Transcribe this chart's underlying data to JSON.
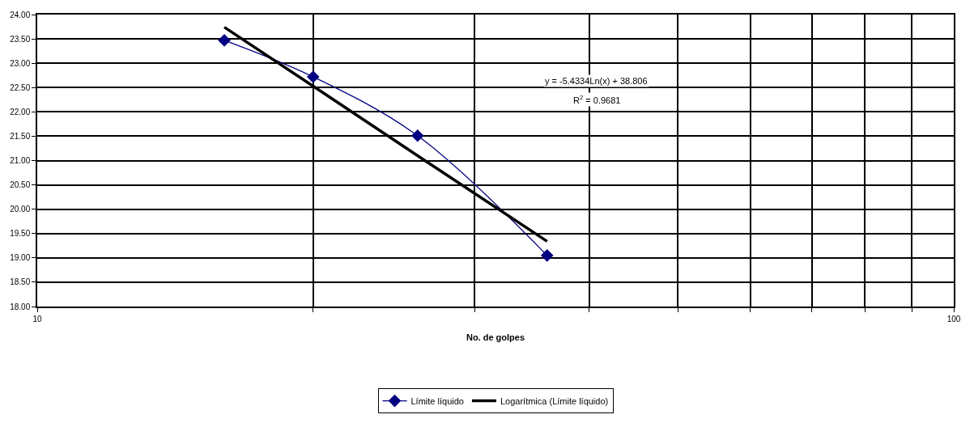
{
  "chart_data": {
    "type": "line",
    "xlabel": "No. de golpes",
    "log": "x",
    "grid": true,
    "legend": "bottom",
    "xlim": [
      10,
      100
    ],
    "xticks": [
      10,
      {
        "value": 20,
        "label": null
      },
      {
        "value": 30,
        "label": null
      },
      {
        "value": 40,
        "label": null
      },
      {
        "value": 50,
        "label": null
      },
      {
        "value": 60,
        "label": null
      },
      {
        "value": 70,
        "label": null
      },
      {
        "value": 80,
        "label": null
      },
      {
        "value": 90,
        "label": null
      },
      100
    ],
    "ylim": [
      18,
      24
    ],
    "yticks": [
      {
        "value": 18,
        "label": "18.00"
      },
      {
        "value": 18.5,
        "label": "18.50"
      },
      {
        "value": 19,
        "label": "19.00"
      },
      {
        "value": 19.5,
        "label": "19.50"
      },
      {
        "value": 20,
        "label": "20.00"
      },
      {
        "value": 20.5,
        "label": "20.50"
      },
      {
        "value": 21,
        "label": "21.00"
      },
      {
        "value": 21.5,
        "label": "21.50"
      },
      {
        "value": 22,
        "label": "22.00"
      },
      {
        "value": 22.5,
        "label": "22.50"
      },
      {
        "value": 23,
        "label": "23.00"
      },
      {
        "value": 23.5,
        "label": "23.50"
      },
      {
        "value": 24,
        "label": "24.00"
      }
    ],
    "series": [
      {
        "name": "Límite líquido",
        "color": "#000080",
        "marker": "diamond",
        "x": [
          16,
          20,
          26,
          36
        ],
        "values": [
          23.47,
          22.72,
          21.51,
          19.05
        ]
      },
      {
        "name": "Logarítmica (Límite líquido)",
        "color": "#000000",
        "marker": "none",
        "x": [
          16,
          20,
          26,
          36
        ],
        "values": [
          23.74,
          22.53,
          21.1,
          19.34
        ]
      }
    ],
    "annotations": [
      "y = -5.4334Ln(x) + 38.806",
      "R$^{2}$ = 0.9681"
    ]
  }
}
